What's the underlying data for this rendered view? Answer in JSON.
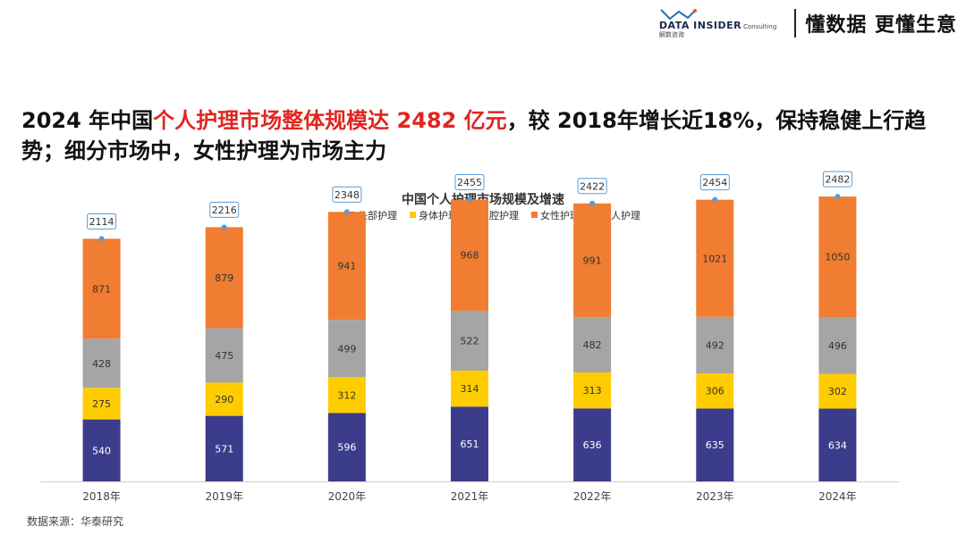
{
  "header": {
    "logo_text": "DATA INSIDER",
    "logo_superscript": "Consulting",
    "logo_subtext": "解数咨询",
    "slogan": "懂数据 更懂生意"
  },
  "headline": {
    "part1": "2024 年中国",
    "highlight": "个人护理市场整体规模达 2482 亿元",
    "part2": "，较 2018年增长近18%，保持稳健上行趋势；细分市场中，女性护理为市场主力"
  },
  "source": "数据来源：华泰研究",
  "colors": {
    "head_care": "#3c3c8c",
    "body_care": "#ffcc00",
    "oral_care": "#a5a5a5",
    "female_care": "#f07d32",
    "personal_care": "#5a9bd5"
  },
  "chart_data": {
    "type": "bar",
    "stacked": true,
    "title": "中国个人护理市场规模及增速",
    "categories": [
      "2018年",
      "2019年",
      "2020年",
      "2021年",
      "2022年",
      "2023年",
      "2024年"
    ],
    "series": [
      {
        "name": "头部护理",
        "values": [
          540,
          571,
          596,
          651,
          636,
          635,
          634
        ]
      },
      {
        "name": "身体护理",
        "values": [
          275,
          290,
          312,
          314,
          313,
          306,
          302
        ]
      },
      {
        "name": "口腔护理",
        "values": [
          428,
          475,
          499,
          522,
          482,
          492,
          496
        ]
      },
      {
        "name": "女性护理",
        "values": [
          871,
          879,
          941,
          968,
          991,
          1021,
          1050
        ]
      }
    ],
    "total_series": {
      "name": "个人护理",
      "values": [
        2114,
        2216,
        2348,
        2455,
        2422,
        2454,
        2482
      ]
    },
    "legend_position": "top",
    "ylim": [
      0,
      2700
    ],
    "grid": false
  }
}
